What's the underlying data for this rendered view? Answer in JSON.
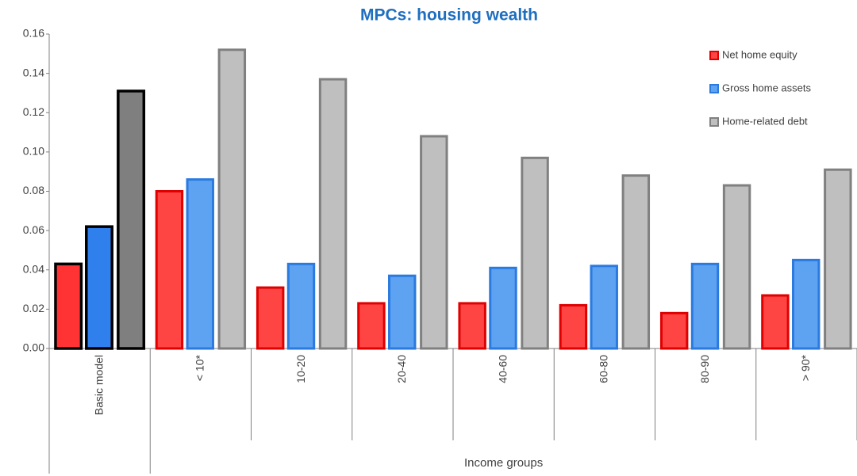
{
  "chart_data": {
    "type": "bar",
    "title": "MPCs: housing wealth",
    "x_group_label": "Income groups",
    "categories": [
      "Basic model",
      "< 10*",
      "10-20",
      "20-40",
      "40-60",
      "60-80",
      "80-90",
      "> 90*"
    ],
    "series": [
      {
        "name": "Net home equity",
        "color": "#ff4444",
        "edge_color": "#e00000",
        "values": [
          0.043,
          0.08,
          0.031,
          0.023,
          0.023,
          0.022,
          0.018,
          0.027
        ]
      },
      {
        "name": "Gross home assets",
        "color": "#5ea2f2",
        "edge_color": "#2a7ae0",
        "values": [
          0.062,
          0.086,
          0.043,
          0.037,
          0.041,
          0.042,
          0.043,
          0.045
        ]
      },
      {
        "name": "Home-related debt",
        "color": "#bfbfbf",
        "edge_color": "#808080",
        "values": [
          0.131,
          0.152,
          0.137,
          0.108,
          0.097,
          0.088,
          0.083,
          0.091
        ]
      }
    ],
    "highlight": {
      "index": 0,
      "colors": [
        "#ff3333",
        "#2f80ed",
        "#7f7f7f"
      ],
      "edge_color": "#000000"
    },
    "ylim": [
      0,
      0.16
    ],
    "yticks": [
      {
        "value": 0,
        "label": "0.00"
      },
      0.02,
      0.04,
      0.06,
      0.08,
      {
        "value": 0.1,
        "label": "0.10"
      },
      0.12,
      0.14,
      0.16
    ],
    "legend": "top-right"
  }
}
